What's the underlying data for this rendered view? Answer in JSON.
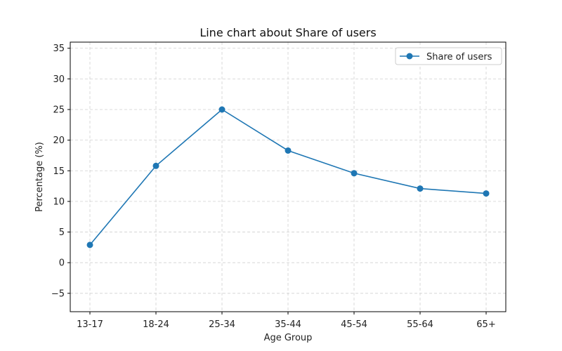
{
  "chart_data": {
    "type": "line",
    "title": "Line chart about Share of users",
    "xlabel": "Age Group",
    "ylabel": "Percentage (%)",
    "categories": [
      "13-17",
      "18-24",
      "25-34",
      "35-44",
      "45-54",
      "55-64",
      "65+"
    ],
    "series": [
      {
        "name": "Share of users",
        "values": [
          2.9,
          15.8,
          25.0,
          18.3,
          14.6,
          12.1,
          11.3
        ]
      }
    ],
    "ylim": [
      -8,
      36
    ],
    "yticks": [
      -5,
      0,
      5,
      10,
      15,
      20,
      25,
      30,
      35
    ],
    "grid": true,
    "legend_position": "top-right",
    "colors": {
      "series": "#1f77b4",
      "grid": "#d0d0d0",
      "axis": "#000000"
    }
  }
}
